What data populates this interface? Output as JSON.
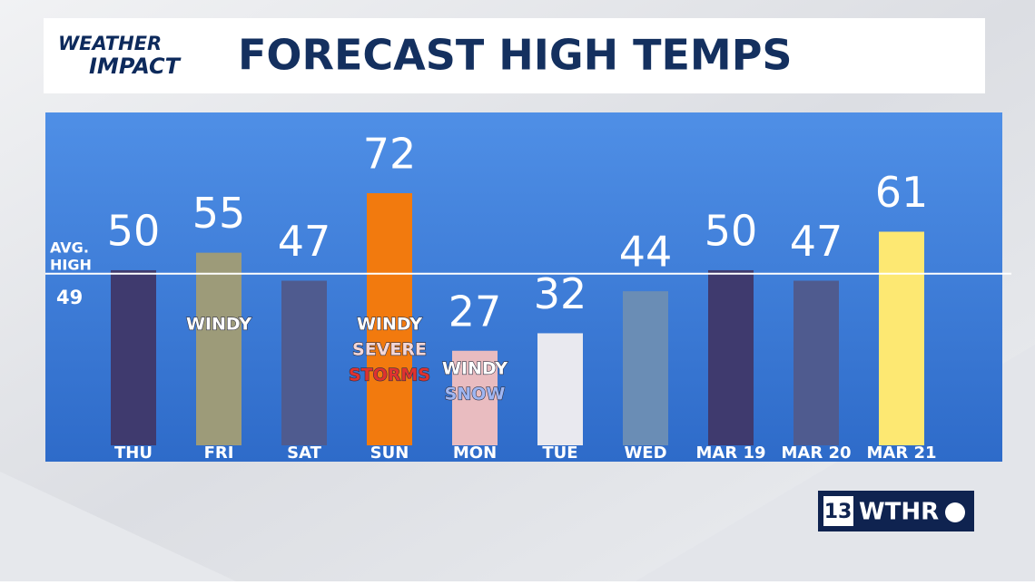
{
  "chart_data": {
    "type": "bar",
    "title": "FORECAST HIGH TEMPS",
    "brand": {
      "line1": "WEATHER",
      "line2": "IMPACT"
    },
    "station": {
      "number": "13",
      "name": "WTHR"
    },
    "categories": [
      "THU",
      "FRI",
      "SAT",
      "SUN",
      "MON",
      "TUE",
      "WED",
      "MAR 19",
      "MAR 20",
      "MAR 21"
    ],
    "values": [
      50,
      55,
      47,
      72,
      27,
      32,
      44,
      50,
      47,
      61
    ],
    "colors": [
      "#3f3a6e",
      "#9d9b79",
      "#4f5b8f",
      "#f27a0e",
      "#e9bcc0",
      "#e9e9ef",
      "#6a8db5",
      "#3f3a6e",
      "#4f5b8f",
      "#fde872"
    ],
    "reference": {
      "label1": "AVG.",
      "label2": "HIGH",
      "value": 49
    },
    "annotations": [
      {
        "category": "FRI",
        "lines": [
          {
            "text": "WINDY",
            "color": "#ffffff"
          }
        ]
      },
      {
        "category": "SUN",
        "lines": [
          {
            "text": "WINDY",
            "color": "#ffffff"
          },
          {
            "text": "SEVERE",
            "color": "#f4d7d7"
          },
          {
            "text": "STORMS",
            "color": "#e0322f"
          }
        ]
      },
      {
        "category": "MON",
        "lines": [
          {
            "text": "WINDY",
            "color": "#ffffff"
          },
          {
            "text": "SNOW",
            "color": "#9fb6f2"
          }
        ]
      }
    ]
  }
}
